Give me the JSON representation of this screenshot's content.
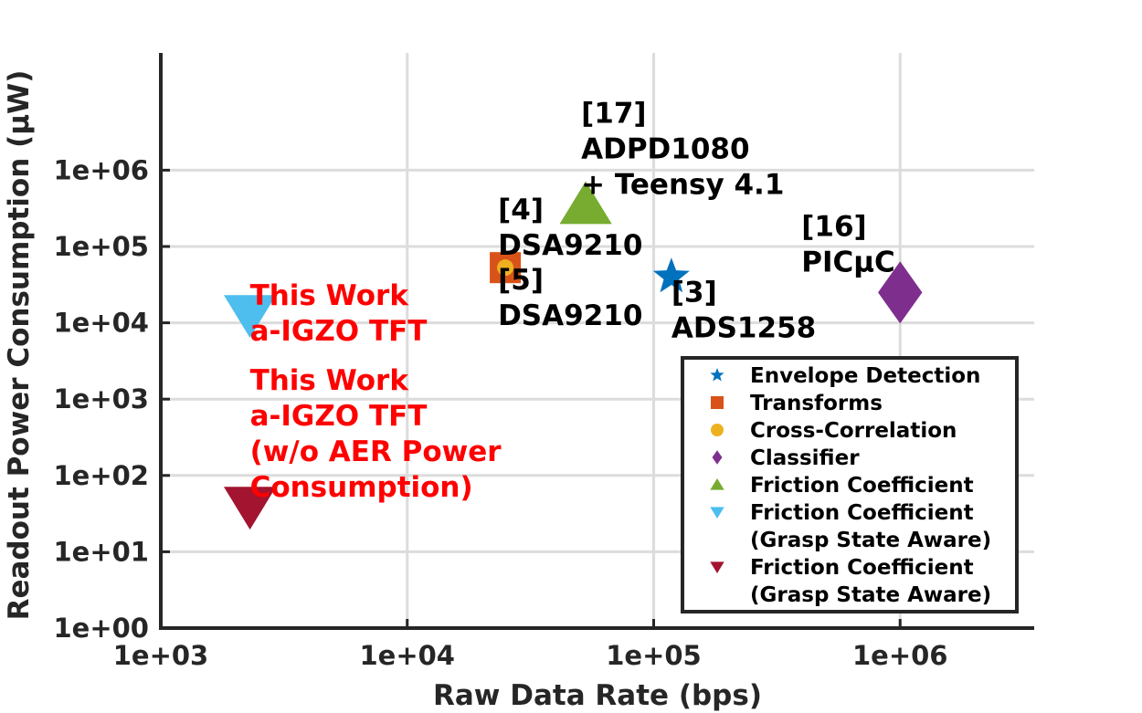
{
  "chart_data": {
    "type": "scatter",
    "xlabel": "Raw Data Rate (bps)",
    "ylabel": "Readout Power Consumption (μW)",
    "xscale": "log",
    "yscale": "log",
    "xlim": [
      1000,
      3500000
    ],
    "ylim": [
      1,
      1500000000
    ],
    "grid": true,
    "legend_position": "bottom-right",
    "xticks": [
      {
        "value": 1000,
        "label": "1e+03"
      },
      {
        "value": 10000,
        "label": "1e+04"
      },
      {
        "value": 100000,
        "label": "1e+05"
      },
      {
        "value": 1000000,
        "label": "1e+06"
      }
    ],
    "yticks": [
      {
        "value": 1,
        "label": "1e+00"
      },
      {
        "value": 10,
        "label": "1e+01"
      },
      {
        "value": 100,
        "label": "1e+02"
      },
      {
        "value": 1000,
        "label": "1e+03"
      },
      {
        "value": 10000,
        "label": "1e+04"
      },
      {
        "value": 100000,
        "label": "1e+05"
      },
      {
        "value": 1000000,
        "label": "1e+06"
      }
    ],
    "series": [
      {
        "name": "Envelope Detection",
        "marker": "star",
        "color": "#0072BD",
        "points": [
          {
            "x": 118000,
            "y": 40000
          }
        ]
      },
      {
        "name": "Transforms",
        "marker": "square",
        "color": "#D95319",
        "points": [
          {
            "x": 25000,
            "y": 50000
          }
        ]
      },
      {
        "name": "Cross-Correlation",
        "marker": "circle",
        "color": "#EDB120",
        "points": [
          {
            "x": 25000,
            "y": 50000
          }
        ]
      },
      {
        "name": "Classifier",
        "marker": "diamond",
        "color": "#7E2F8E",
        "points": [
          {
            "x": 1000000,
            "y": 25000
          }
        ]
      },
      {
        "name": "Friction Coefficient",
        "marker": "triangle-up",
        "color": "#77AC30",
        "points": [
          {
            "x": 53000,
            "y": 350000
          }
        ]
      },
      {
        "name": "Friction Coefficient\n(Grasp State Aware)",
        "legend_lines": [
          "Friction Coefficient",
          "(Grasp State Aware)"
        ],
        "marker": "triangle-down",
        "color": "#4DBEEE",
        "points": [
          {
            "x": 2300,
            "y": 13000
          }
        ]
      },
      {
        "name": "Friction Coefficient\n(Grasp State Aware)",
        "legend_lines": [
          "Friction Coefficient",
          "(Grasp State Aware)"
        ],
        "marker": "triangle-down",
        "color": "#A2142F",
        "points": [
          {
            "x": 2300,
            "y": 40
          }
        ]
      }
    ],
    "annotations": [
      {
        "lines": [
          "[17]",
          "ADPD1080",
          "+ Teensy 4.1"
        ],
        "x": 53000,
        "y": 350000,
        "color": "#000000"
      },
      {
        "lines": [
          "[4]",
          "DSA9210"
        ],
        "x": 25000,
        "y": 50000,
        "color": "#000000"
      },
      {
        "lines": [
          "[5]",
          "DSA9210"
        ],
        "x": 25000,
        "y": 50000,
        "color": "#000000"
      },
      {
        "lines": [
          "[3]",
          "ADS1258"
        ],
        "x": 118000,
        "y": 40000,
        "color": "#000000"
      },
      {
        "lines": [
          "[16]",
          "PICμC"
        ],
        "x": 1000000,
        "y": 25000,
        "color": "#000000"
      },
      {
        "lines": [
          "This Work",
          "a-IGZO TFT"
        ],
        "x": 2300,
        "y": 13000,
        "color": "#FF0000"
      },
      {
        "lines": [
          "This Work",
          "a-IGZO TFT",
          "(w/o AER Power",
          "Consumption)"
        ],
        "x": 2300,
        "y": 40,
        "color": "#FF0000"
      }
    ]
  }
}
